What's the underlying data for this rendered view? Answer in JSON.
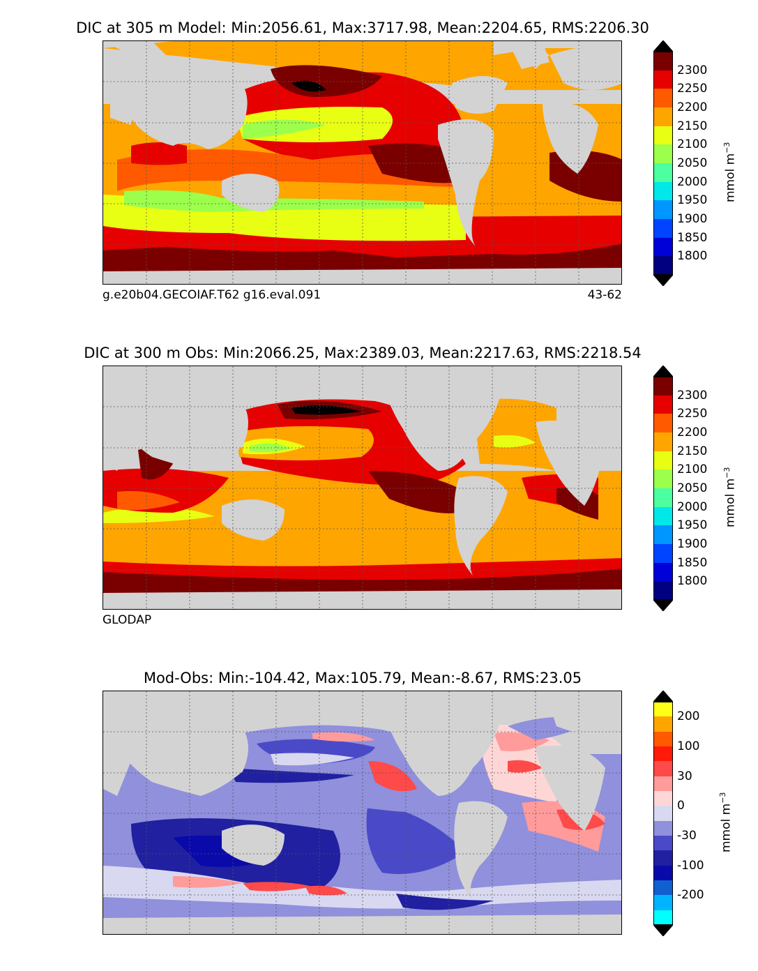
{
  "panels": [
    {
      "title": "DIC at 305 m Model: Min:2056.61, Max:3717.98, Mean:2204.65, RMS:2206.30",
      "footer_left": "g.e20b04.GECOIAF.T62 g16.eval.091",
      "footer_right": "43-62",
      "colorbar": {
        "unit": "mmol m",
        "unit_exp": "−3",
        "labels": [
          "2300",
          "2250",
          "2200",
          "2150",
          "2100",
          "2050",
          "2000",
          "1950",
          "1900",
          "1850",
          "1800"
        ],
        "colors": [
          "#7a0000",
          "#e60000",
          "#ff5a00",
          "#ffa500",
          "#e8ff14",
          "#9cff4c",
          "#4cffa0",
          "#00e8e8",
          "#0096ff",
          "#0044ff",
          "#0000d8",
          "#000080"
        ]
      }
    },
    {
      "title": "DIC at 300 m Obs: Min:2066.25, Max:2389.03, Mean:2217.63, RMS:2218.54",
      "footer_left": "GLODAP",
      "footer_right": "",
      "colorbar": {
        "unit": "mmol m",
        "unit_exp": "−3",
        "labels": [
          "2300",
          "2250",
          "2200",
          "2150",
          "2100",
          "2050",
          "2000",
          "1950",
          "1900",
          "1850",
          "1800"
        ],
        "colors": [
          "#7a0000",
          "#e60000",
          "#ff5a00",
          "#ffa500",
          "#e8ff14",
          "#9cff4c",
          "#4cffa0",
          "#00e8e8",
          "#0096ff",
          "#0044ff",
          "#0000d8",
          "#000080"
        ]
      }
    },
    {
      "title": "Mod-Obs: Min:-104.42, Max:105.79, Mean:-8.67, RMS:23.05",
      "footer_left": "",
      "footer_right": "",
      "colorbar": {
        "unit": "mmol m",
        "unit_exp": "−3",
        "labels": [
          "200",
          "100",
          "30",
          "0",
          "-30",
          "-100",
          "-200"
        ],
        "colors": [
          "#ffff19",
          "#ffa500",
          "#ff5a00",
          "#ff1a0a",
          "#ff4a4a",
          "#ff9b9b",
          "#ffd6d6",
          "#d8d8f0",
          "#9090dc",
          "#4a4ac8",
          "#2020a0",
          "#0a0aaa",
          "#1060d0",
          "#00b4ff",
          "#00ffff"
        ]
      }
    }
  ]
}
